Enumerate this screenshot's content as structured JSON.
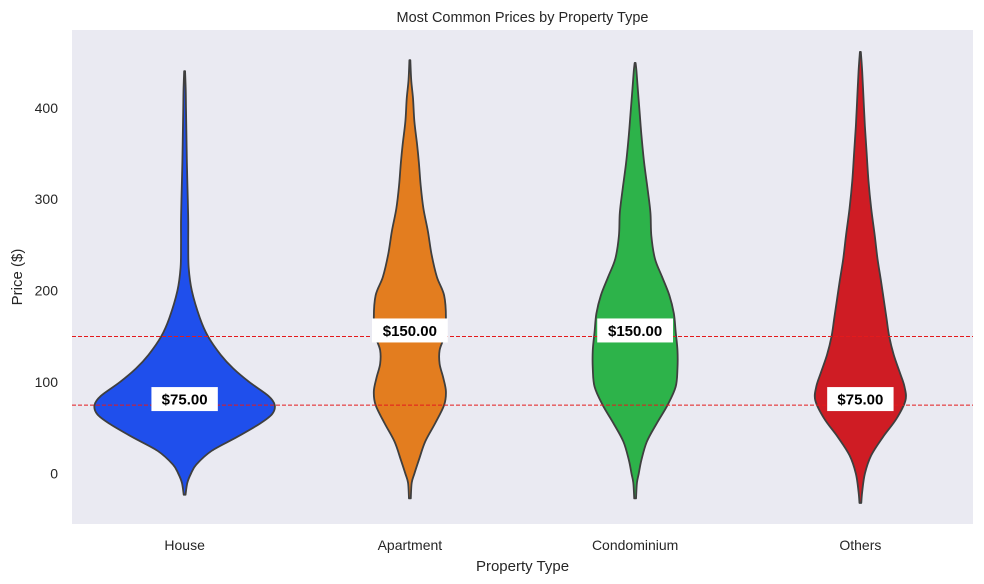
{
  "chart_data": {
    "type": "violin",
    "title": "Most Common Prices by Property Type",
    "xlabel": "Property Type",
    "ylabel": "Price ($)",
    "ylim": [
      -55,
      485
    ],
    "yticks": [
      0,
      100,
      200,
      300,
      400
    ],
    "grid": false,
    "reference_lines": [
      {
        "value": 75,
        "color": "#e41a1c",
        "style": "dashed"
      },
      {
        "value": 150,
        "color": "#e41a1c",
        "style": "dashed"
      }
    ],
    "categories": [
      "House",
      "Apartment",
      "Condominium",
      "Others"
    ],
    "series": [
      {
        "name": "House",
        "color": "#1f4fec",
        "most_common_price": 75,
        "label": "$75.00",
        "min": -23,
        "max": 440,
        "density": [
          [
            -23,
            0.01
          ],
          [
            -10,
            0.03
          ],
          [
            0,
            0.07
          ],
          [
            10,
            0.13
          ],
          [
            25,
            0.3
          ],
          [
            40,
            0.58
          ],
          [
            55,
            0.84
          ],
          [
            65,
            0.97
          ],
          [
            75,
            1.0
          ],
          [
            85,
            0.93
          ],
          [
            100,
            0.72
          ],
          [
            115,
            0.54
          ],
          [
            130,
            0.4
          ],
          [
            150,
            0.26
          ],
          [
            170,
            0.17
          ],
          [
            200,
            0.08
          ],
          [
            225,
            0.045
          ],
          [
            250,
            0.04
          ],
          [
            275,
            0.04
          ],
          [
            300,
            0.035
          ],
          [
            340,
            0.025
          ],
          [
            370,
            0.02
          ],
          [
            400,
            0.015
          ],
          [
            420,
            0.012
          ],
          [
            440,
            0.005
          ]
        ]
      },
      {
        "name": "Apartment",
        "color": "#e37d1f",
        "most_common_price": 150,
        "label": "$150.00",
        "min": -27,
        "max": 452,
        "density": [
          [
            -27,
            0.01
          ],
          [
            -10,
            0.02
          ],
          [
            0,
            0.05
          ],
          [
            15,
            0.1
          ],
          [
            35,
            0.17
          ],
          [
            55,
            0.28
          ],
          [
            75,
            0.38
          ],
          [
            90,
            0.4
          ],
          [
            105,
            0.37
          ],
          [
            120,
            0.33
          ],
          [
            135,
            0.33
          ],
          [
            150,
            0.38
          ],
          [
            170,
            0.4
          ],
          [
            195,
            0.38
          ],
          [
            215,
            0.3
          ],
          [
            240,
            0.24
          ],
          [
            265,
            0.2
          ],
          [
            290,
            0.15
          ],
          [
            315,
            0.12
          ],
          [
            340,
            0.1
          ],
          [
            360,
            0.08
          ],
          [
            385,
            0.05
          ],
          [
            410,
            0.035
          ],
          [
            430,
            0.015
          ],
          [
            452,
            0.005
          ]
        ]
      },
      {
        "name": "Condominium",
        "color": "#2db34a",
        "most_common_price": 150,
        "label": "$150.00",
        "min": -27,
        "max": 449,
        "density": [
          [
            -27,
            0.01
          ],
          [
            -10,
            0.02
          ],
          [
            0,
            0.04
          ],
          [
            15,
            0.07
          ],
          [
            35,
            0.13
          ],
          [
            55,
            0.24
          ],
          [
            75,
            0.36
          ],
          [
            95,
            0.45
          ],
          [
            115,
            0.47
          ],
          [
            135,
            0.47
          ],
          [
            155,
            0.45
          ],
          [
            175,
            0.43
          ],
          [
            195,
            0.38
          ],
          [
            215,
            0.3
          ],
          [
            235,
            0.22
          ],
          [
            260,
            0.18
          ],
          [
            285,
            0.17
          ],
          [
            310,
            0.14
          ],
          [
            340,
            0.1
          ],
          [
            370,
            0.07
          ],
          [
            395,
            0.05
          ],
          [
            420,
            0.03
          ],
          [
            440,
            0.015
          ],
          [
            449,
            0.005
          ]
        ]
      },
      {
        "name": "Others",
        "color": "#cf1c24",
        "most_common_price": 75,
        "label": "$75.00",
        "min": -32,
        "max": 461,
        "density": [
          [
            -32,
            0.01
          ],
          [
            -20,
            0.02
          ],
          [
            0,
            0.05
          ],
          [
            20,
            0.12
          ],
          [
            40,
            0.25
          ],
          [
            60,
            0.4
          ],
          [
            80,
            0.5
          ],
          [
            95,
            0.49
          ],
          [
            110,
            0.44
          ],
          [
            130,
            0.37
          ],
          [
            150,
            0.32
          ],
          [
            170,
            0.29
          ],
          [
            190,
            0.26
          ],
          [
            210,
            0.23
          ],
          [
            235,
            0.19
          ],
          [
            260,
            0.16
          ],
          [
            290,
            0.12
          ],
          [
            320,
            0.09
          ],
          [
            350,
            0.07
          ],
          [
            380,
            0.05
          ],
          [
            410,
            0.035
          ],
          [
            440,
            0.02
          ],
          [
            461,
            0.005
          ]
        ]
      }
    ]
  }
}
